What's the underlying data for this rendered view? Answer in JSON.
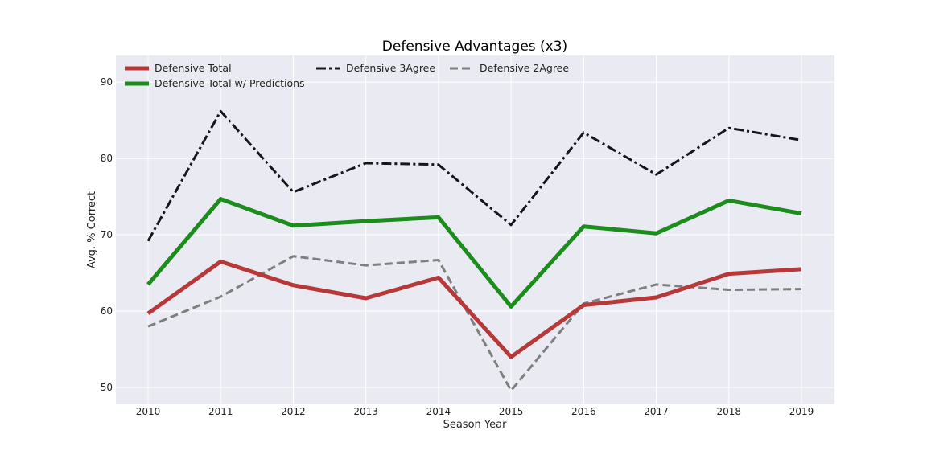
{
  "chart_data": {
    "type": "line",
    "title": "Defensive Advantages (x3)",
    "xlabel": "Season Year",
    "ylabel": "Avg. % Correct",
    "categories": [
      "2010",
      "2011",
      "2012",
      "2013",
      "2014",
      "2015",
      "2016",
      "2017",
      "2018",
      "2019"
    ],
    "ylim": [
      47.8,
      93.5
    ],
    "yticks": [
      50,
      60,
      70,
      80,
      90
    ],
    "grid": true,
    "legend_placement": "top-left",
    "series": [
      {
        "name": "Defensive Total",
        "color": "#b73839",
        "dash": "solid",
        "values": [
          59.7,
          66.5,
          63.4,
          61.7,
          64.4,
          54.0,
          60.8,
          61.8,
          64.9,
          65.5
        ]
      },
      {
        "name": "Defensive Total w/ Predictions",
        "color": "#1c8c1c",
        "dash": "solid",
        "values": [
          63.5,
          74.7,
          71.2,
          71.8,
          72.3,
          60.6,
          71.1,
          70.2,
          74.5,
          72.8
        ]
      },
      {
        "name": "Defensive 3Agree",
        "color": "#15151b",
        "dash": "dashdot",
        "values": [
          69.2,
          86.2,
          75.6,
          79.4,
          79.2,
          71.3,
          83.4,
          77.9,
          84.0,
          82.4
        ]
      },
      {
        "name": "Defensive 2Agree",
        "color": "#7f7f7f",
        "dash": "dashed",
        "values": [
          58.0,
          61.9,
          67.2,
          66.0,
          66.7,
          49.6,
          61.0,
          63.5,
          62.8,
          62.9
        ]
      }
    ]
  }
}
